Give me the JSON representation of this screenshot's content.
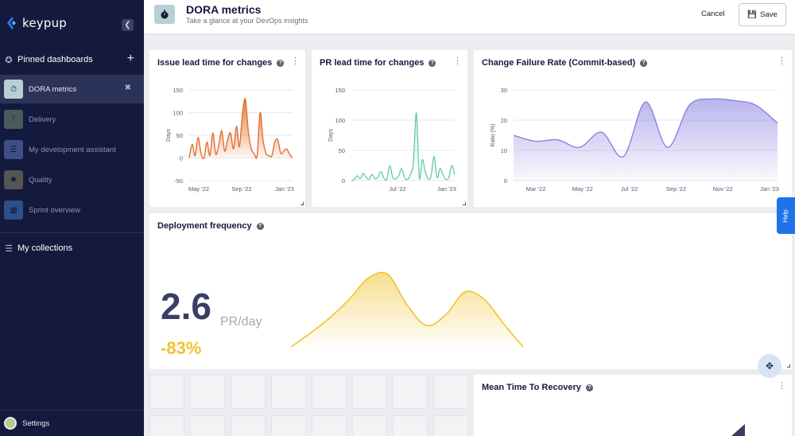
{
  "app": {
    "name": "keypup"
  },
  "sidebar": {
    "collapse_icon": "chevron-left-icon",
    "pinned_label": "Pinned dashboards",
    "collections_label": "My collections",
    "items": [
      {
        "label": "DORA metrics",
        "icon": "stopwatch-icon",
        "active": true
      },
      {
        "label": "Delivery",
        "icon": "branch-icon",
        "active": false
      },
      {
        "label": "My development assistant",
        "icon": "list-icon",
        "active": false
      },
      {
        "label": "Quality",
        "icon": "bug-icon",
        "active": false
      },
      {
        "label": "Sprint overview",
        "icon": "calendar-icon",
        "active": false
      }
    ],
    "settings_label": "Settings"
  },
  "header": {
    "title": "DORA metrics",
    "subtitle": "Take a glance at your DevOps insights",
    "cancel_label": "Cancel",
    "save_label": "Save"
  },
  "cards": {
    "issue_lead": {
      "title": "Issue lead time for changes"
    },
    "pr_lead": {
      "title": "PR lead time for changes"
    },
    "cfr": {
      "title": "Change Failure Rate (Commit-based)"
    },
    "deploy": {
      "title": "Deployment frequency",
      "value": "2.6",
      "unit": "PR/day",
      "change": "-83%"
    },
    "mttr": {
      "title": "Mean Time To Recovery"
    }
  },
  "help_tab": "Help",
  "colors": {
    "issue": "#e3702f",
    "pr": "#59c99a",
    "cfr": "#8b82e0",
    "deploy": "#f0c230",
    "sidebar": "#141a3d"
  },
  "chart_data": [
    {
      "type": "area",
      "title": "Issue lead time for changes",
      "ylabel": "Days",
      "ylim": [
        -50,
        150
      ],
      "yticks": [
        "150",
        "100",
        "50",
        "0",
        "-50"
      ],
      "xticks": [
        "May '22",
        "Sep '22",
        "Jan '23"
      ],
      "x": [
        0,
        1,
        2,
        3,
        4,
        5,
        6,
        7,
        8,
        9,
        10,
        11,
        12,
        13,
        14,
        15,
        16,
        17,
        18,
        19,
        20,
        21,
        22,
        23,
        24,
        25,
        26,
        27,
        28,
        29,
        30,
        31,
        32,
        33,
        34,
        35
      ],
      "series": [
        {
          "values": [
            0,
            30,
            5,
            45,
            10,
            0,
            35,
            5,
            55,
            8,
            28,
            60,
            15,
            40,
            55,
            20,
            70,
            25,
            95,
            130,
            60,
            20,
            10,
            5,
            100,
            40,
            10,
            5,
            5,
            35,
            40,
            10,
            15,
            20,
            8,
            0
          ]
        }
      ]
    },
    {
      "type": "area",
      "title": "PR lead time for changes",
      "ylabel": "Days",
      "ylim": [
        0,
        150
      ],
      "yticks": [
        "150",
        "100",
        "50",
        "0"
      ],
      "xticks": [
        "Jul '22",
        "Jan '23"
      ],
      "x": [
        0,
        1,
        2,
        3,
        4,
        5,
        6,
        7,
        8,
        9,
        10,
        11,
        12,
        13,
        14,
        15,
        16,
        17,
        18,
        19,
        20,
        21,
        22,
        23,
        24,
        25,
        26,
        27,
        28,
        29,
        30,
        31,
        32,
        33,
        34,
        35
      ],
      "series": [
        {
          "values": [
            0,
            2,
            8,
            3,
            12,
            5,
            2,
            10,
            3,
            6,
            15,
            4,
            2,
            25,
            5,
            3,
            8,
            20,
            5,
            2,
            10,
            30,
            112,
            5,
            35,
            15,
            3,
            8,
            40,
            5,
            20,
            10,
            2,
            5,
            25,
            10
          ]
        }
      ]
    },
    {
      "type": "area",
      "title": "Change Failure Rate (Commit-based)",
      "ylabel": "Ratio (%)",
      "ylim": [
        0,
        30
      ],
      "yticks": [
        "30",
        "20",
        "10",
        "0"
      ],
      "xticks": [
        "Mar '22",
        "May '22",
        "Jul '22",
        "Sep '22",
        "Nov '22",
        "Jan '23"
      ],
      "x": [
        0,
        1,
        2,
        3,
        4,
        5,
        6,
        7,
        8,
        9,
        10,
        11,
        12
      ],
      "series": [
        {
          "values": [
            15,
            13,
            13.5,
            11,
            16,
            8,
            26,
            11,
            25,
            27,
            26.5,
            25,
            19
          ]
        }
      ]
    },
    {
      "type": "area",
      "title": "Deployment frequency",
      "ylim": [
        0,
        1
      ],
      "x": [
        0,
        1,
        2,
        3,
        4,
        5,
        6,
        7,
        8,
        9,
        10,
        11,
        12
      ],
      "series": [
        {
          "values": [
            0,
            0.18,
            0.38,
            0.62,
            0.9,
            0.95,
            0.55,
            0.28,
            0.42,
            0.72,
            0.62,
            0.3,
            0
          ]
        }
      ]
    }
  ]
}
